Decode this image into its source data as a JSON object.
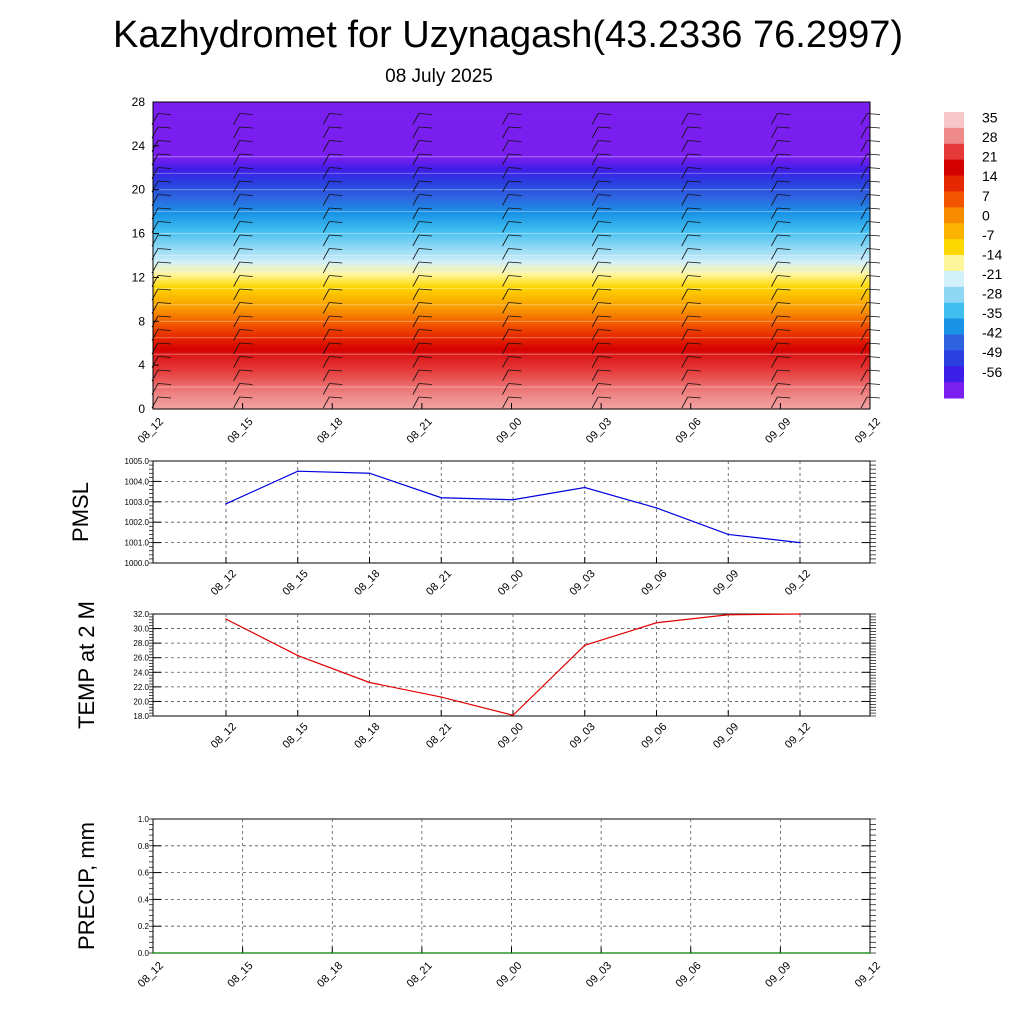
{
  "title": "Kazhydromet for Uzynagash(43.2336 76.2997)",
  "subtitle": "08 July 2025",
  "time_labels": [
    "08_12",
    "08_15",
    "08_18",
    "08_21",
    "09_00",
    "09_03",
    "09_06",
    "09_09",
    "09_12"
  ],
  "chart_data": [
    {
      "type": "heatmap",
      "title": "",
      "xlabel": "",
      "ylabel": "",
      "x": [
        "08_12",
        "08_15",
        "08_18",
        "08_21",
        "09_00",
        "09_03",
        "09_06",
        "09_09",
        "09_12"
      ],
      "y_ticks": [
        "0",
        "4",
        "8",
        "12",
        "16",
        "20",
        "24",
        "28"
      ],
      "ylim": [
        0,
        28
      ],
      "legend_position": "right",
      "colorbar_labels": [
        "35",
        "28",
        "21",
        "14",
        "7",
        "0",
        "-7",
        "-14",
        "-21",
        "-28",
        "-35",
        "-42",
        "-49",
        "-56"
      ],
      "colorbar_colors": [
        "#f7c7c7",
        "#ef8a8a",
        "#e63a3a",
        "#d40000",
        "#e62800",
        "#f25400",
        "#f78c00",
        "#fbb300",
        "#fdd700",
        "#fff59a",
        "#d2f0fa",
        "#8fd8f5",
        "#3fbef0",
        "#1a93e6",
        "#2e62e0",
        "#2a3fe0",
        "#3d1ee8",
        "#7a1ff0"
      ],
      "profile": [
        {
          "height": 0,
          "value": 32
        },
        {
          "height": 2,
          "value": 28
        },
        {
          "height": 5,
          "value": 21
        },
        {
          "height": 8,
          "value": 7
        },
        {
          "height": 11,
          "value": -7
        },
        {
          "height": 12.5,
          "value": -14
        },
        {
          "height": 14,
          "value": -21
        },
        {
          "height": 16,
          "value": -28
        },
        {
          "height": 18,
          "value": -35
        },
        {
          "height": 20,
          "value": -42
        },
        {
          "height": 21.5,
          "value": -49
        },
        {
          "height": 23,
          "value": -56
        },
        {
          "height": 28,
          "value": -58
        }
      ],
      "grid": false
    },
    {
      "type": "line",
      "title": "",
      "xlabel": "",
      "ylabel": "PMSL",
      "x": [
        "08_12",
        "08_15",
        "08_18",
        "08_21",
        "09_00",
        "09_03",
        "09_06",
        "09_09",
        "09_12"
      ],
      "y_ticks": [
        "1000.0",
        "1001.0",
        "1002.0",
        "1003.0",
        "1004.0",
        "1005.0"
      ],
      "ylim": [
        1000,
        1005
      ],
      "series": [
        {
          "values": [
            1002.9,
            1004.5,
            1004.4,
            1003.2,
            1003.1,
            1003.7,
            1002.7,
            1001.4,
            1001.0
          ]
        }
      ],
      "color": "#0000e0",
      "grid": true
    },
    {
      "type": "line",
      "title": "",
      "xlabel": "",
      "ylabel": "TEMP at 2 M",
      "x": [
        "08_12",
        "08_15",
        "08_18",
        "08_21",
        "09_00",
        "09_03",
        "09_06",
        "09_09",
        "09_12"
      ],
      "y_ticks": [
        "18.0",
        "20.0",
        "22.0",
        "24.0",
        "26.0",
        "28.0",
        "30.0",
        "32.0"
      ],
      "ylim": [
        18,
        32
      ],
      "series": [
        {
          "values": [
            31.3,
            26.3,
            22.6,
            20.6,
            18.1,
            27.7,
            30.8,
            31.9,
            32.0
          ]
        }
      ],
      "color": "#e00000",
      "grid": true
    },
    {
      "type": "line",
      "title": "",
      "xlabel": "",
      "ylabel": "PRECIP, mm",
      "x": [
        "08_12",
        "08_15",
        "08_18",
        "08_21",
        "09_00",
        "09_03",
        "09_06",
        "09_09",
        "09_12"
      ],
      "y_ticks": [
        "0.0",
        "0.2",
        "0.4",
        "0.6",
        "0.8",
        "1.0"
      ],
      "ylim": [
        0,
        1
      ],
      "series": [
        {
          "values": [
            0,
            0,
            0,
            0,
            0,
            0,
            0,
            0,
            0
          ]
        }
      ],
      "color": "#008000",
      "grid": true
    }
  ]
}
